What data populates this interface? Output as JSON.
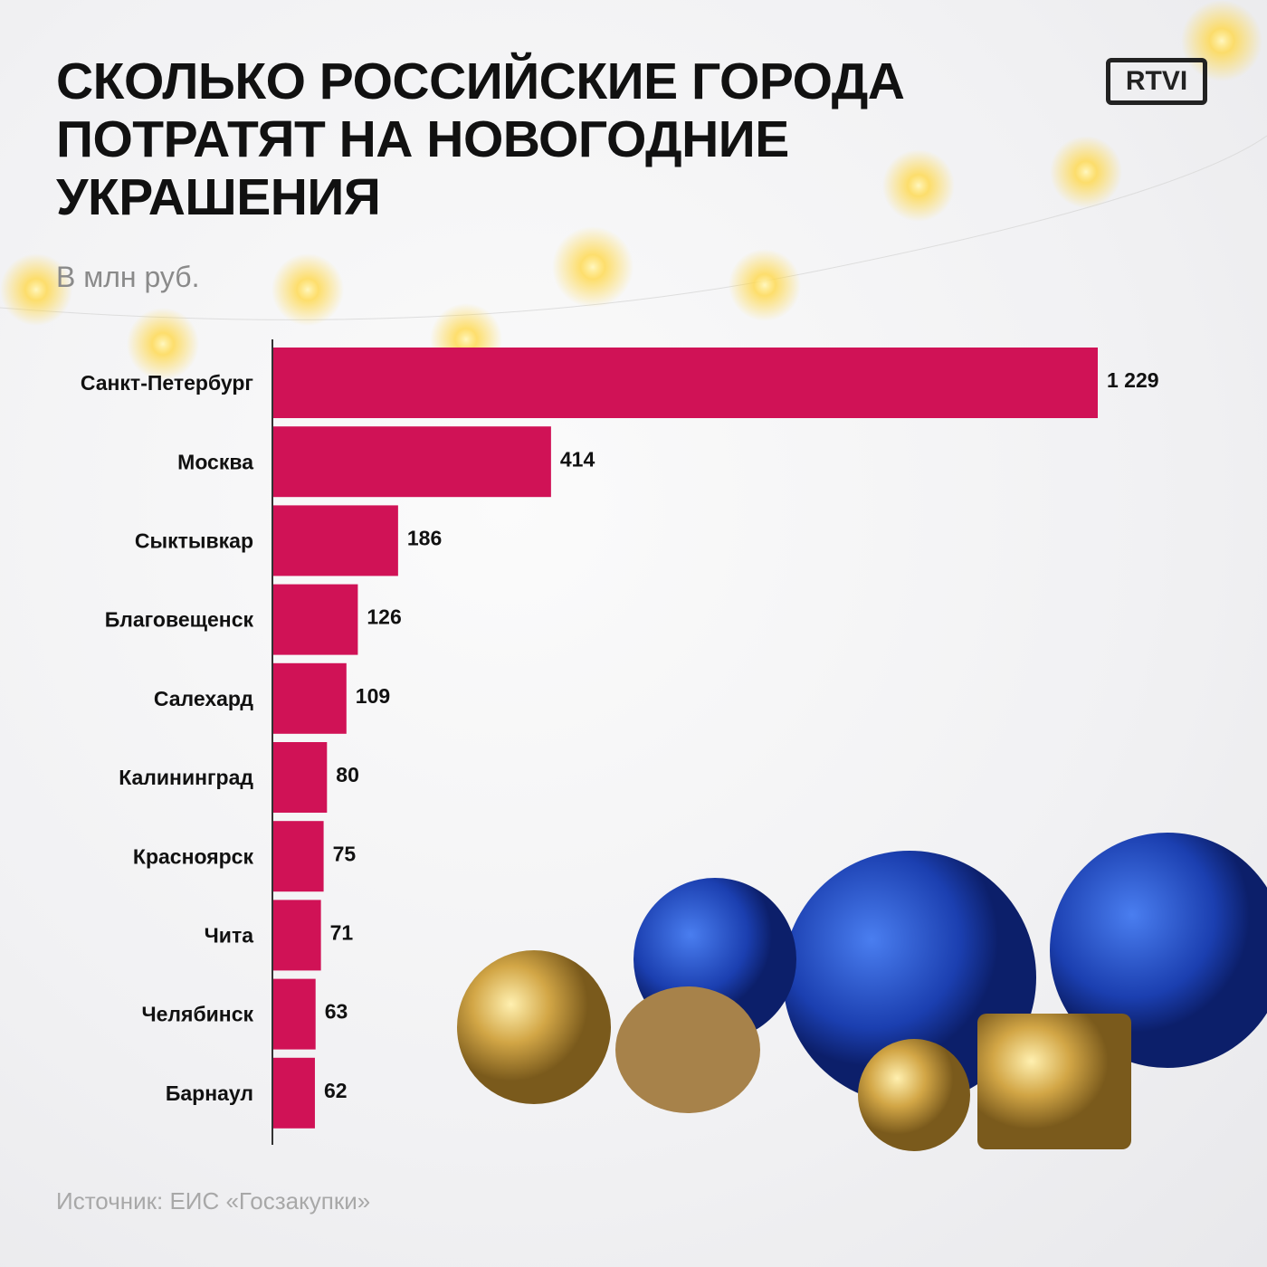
{
  "chart_data": {
    "type": "bar",
    "orientation": "horizontal",
    "title": "СКОЛЬКО РОССИЙСКИЕ ГОРОДА ПОТРАТЯТ НА НОВОГОДНИЕ УКРАШЕНИЯ",
    "subtitle": "В млн руб.",
    "source": "Источник: ЕИС «Госзакупки»",
    "logo": "RTVI",
    "categories": [
      "Санкт-Петербург",
      "Москва",
      "Сыктывкар",
      "Благовещенск",
      "Салехард",
      "Калининград",
      "Красноярск",
      "Чита",
      "Челябинск",
      "Барнаул"
    ],
    "values": [
      1229,
      414,
      186,
      126,
      109,
      80,
      75,
      71,
      63,
      62
    ],
    "value_labels": [
      "1 229",
      "414",
      "186",
      "126",
      "109",
      "80",
      "75",
      "71",
      "63",
      "62"
    ],
    "color": "#d01256"
  }
}
